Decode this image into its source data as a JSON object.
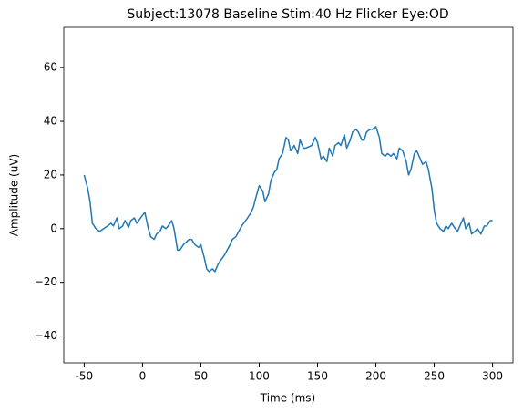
{
  "chart_data": {
    "type": "line",
    "title": "Subject:13078 Baseline Stim:40 Hz Flicker Eye:OD",
    "xlabel": "Time (ms)",
    "ylabel": "Amplitude (uV)",
    "xlim": [
      -67.5,
      317.5
    ],
    "ylim": [
      -50,
      75
    ],
    "xticks": [
      -50,
      0,
      50,
      100,
      150,
      200,
      250,
      300
    ],
    "yticks": [
      {
        "value": -40,
        "label": "−40"
      },
      {
        "value": -20,
        "label": "−20"
      },
      0,
      20,
      40,
      60
    ],
    "series": [
      {
        "name": "OD",
        "color": "#1f77b4",
        "x": [
          -50,
          -47,
          -45,
          -43,
          -40,
          -37,
          -35,
          -30,
          -27,
          -25,
          -22,
          -20,
          -17,
          -15,
          -12,
          -10,
          -7,
          -5,
          0,
          2,
          5,
          7,
          10,
          12,
          15,
          17,
          20,
          22,
          25,
          27,
          30,
          32,
          35,
          40,
          42,
          45,
          48,
          50,
          53,
          55,
          57,
          60,
          62,
          65,
          70,
          75,
          77,
          80,
          85,
          90,
          93,
          95,
          98,
          100,
          103,
          105,
          108,
          110,
          113,
          115,
          117,
          120,
          123,
          125,
          127,
          130,
          133,
          135,
          138,
          140,
          145,
          148,
          150,
          153,
          155,
          158,
          160,
          163,
          165,
          168,
          170,
          173,
          175,
          178,
          180,
          183,
          185,
          188,
          190,
          192,
          195,
          197,
          200,
          203,
          205,
          208,
          210,
          213,
          215,
          218,
          220,
          223,
          226,
          228,
          230,
          233,
          235,
          238,
          240,
          243,
          245,
          248,
          250,
          252,
          255,
          258,
          260,
          262,
          265,
          268,
          270,
          272,
          275,
          277,
          280,
          282,
          285,
          287,
          290,
          293,
          295,
          298,
          300
        ],
        "values": [
          20,
          15,
          10,
          2,
          0,
          -1,
          -0.5,
          1,
          2,
          1,
          4,
          0,
          1,
          3,
          0.5,
          3,
          4,
          2,
          5,
          6,
          0,
          -3,
          -4,
          -2,
          -1,
          1,
          0,
          1,
          3,
          0,
          -8,
          -8,
          -6,
          -4,
          -4,
          -6,
          -7,
          -6,
          -11,
          -15,
          -16,
          -15,
          -16,
          -13,
          -10,
          -6,
          -4,
          -3,
          1,
          4,
          6,
          8,
          13,
          16,
          14,
          10,
          13,
          18,
          21,
          22,
          26,
          28,
          34,
          33,
          29,
          31,
          28,
          33,
          30,
          30,
          31,
          34,
          32,
          26,
          27,
          25,
          30,
          27,
          31,
          32,
          31,
          35,
          30,
          33,
          36,
          37,
          36,
          33,
          33,
          36,
          37,
          37,
          38,
          34,
          28,
          27,
          28,
          27,
          28,
          26,
          30,
          29,
          25,
          20,
          22,
          28,
          29,
          26,
          24,
          25,
          22,
          15,
          7,
          2,
          0,
          -1,
          1,
          0,
          2,
          0,
          -1,
          1,
          4,
          0,
          2,
          -2,
          -1,
          0,
          -2,
          1,
          1,
          3,
          3
        ]
      }
    ]
  }
}
